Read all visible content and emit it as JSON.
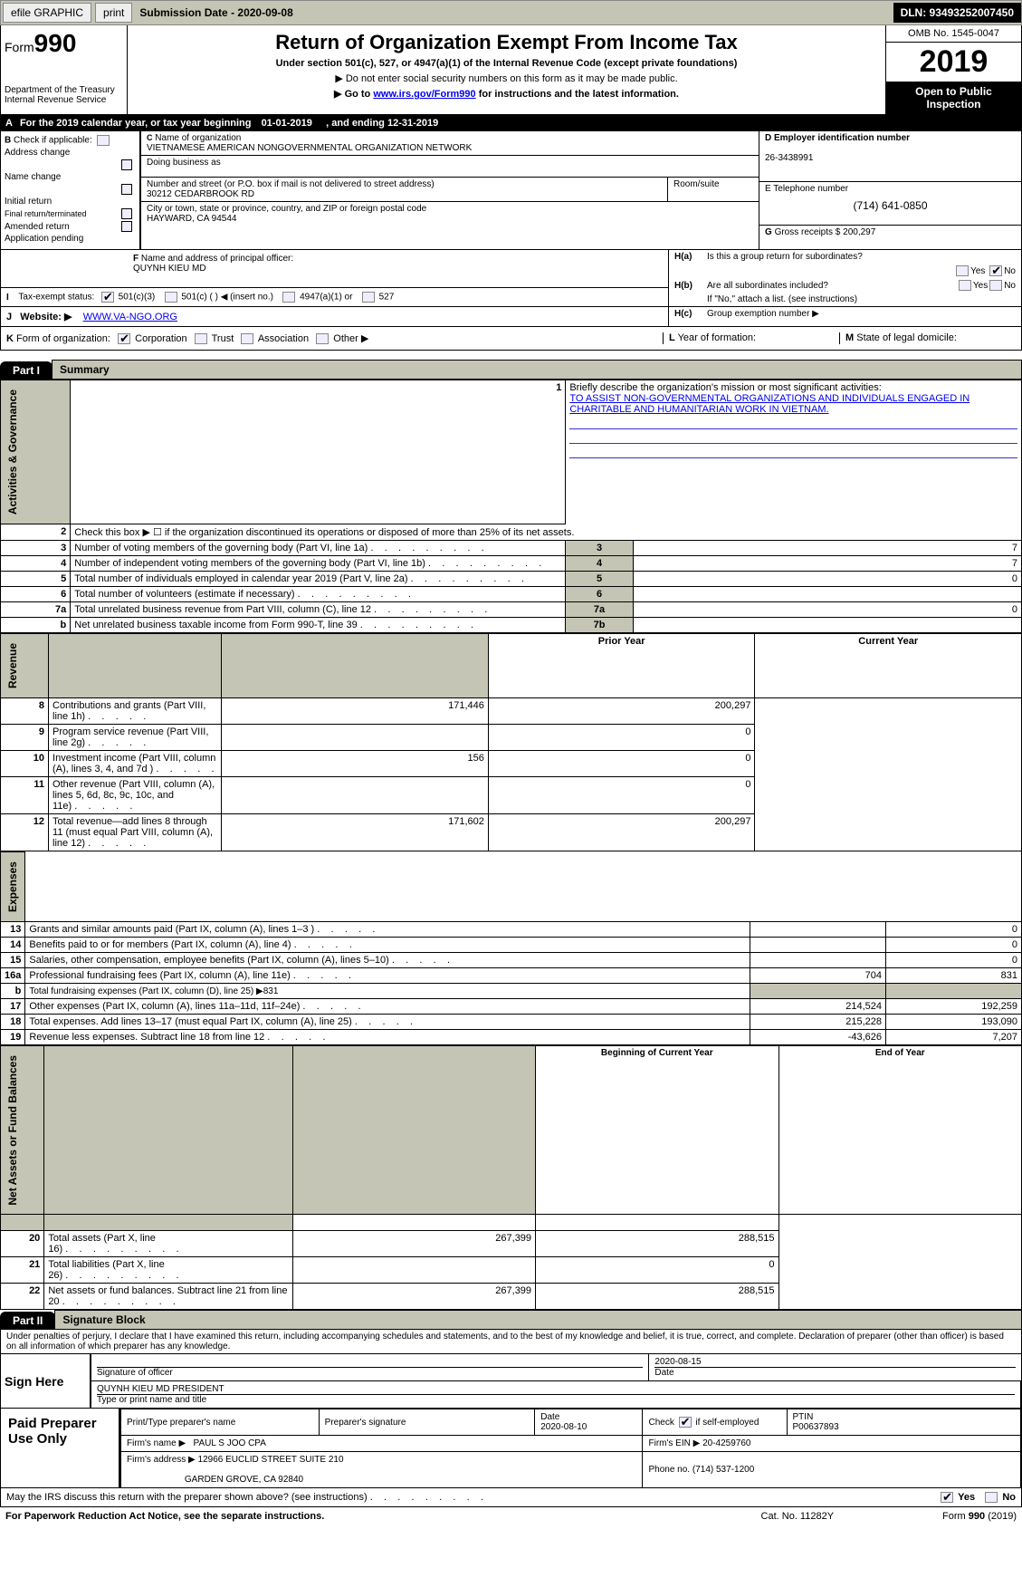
{
  "topbar": {
    "efile_label": "efile GRAPHIC",
    "print_label": "print",
    "submission_label": "Submission Date - 2020-09-08",
    "dln": "DLN: 93493252007450"
  },
  "header": {
    "form_prefix": "Form",
    "form_num": "990",
    "dept1": "Department of the Treasury",
    "dept2": "Internal Revenue Service",
    "title": "Return of Organization Exempt From Income Tax",
    "subtitle": "Under section 501(c), 527, or 4947(a)(1) of the Internal Revenue Code (except private foundations)",
    "note1": "▶ Do not enter social security numbers on this form as it may be made public.",
    "note2_pre": "▶ Go to ",
    "note2_link": "www.irs.gov/Form990",
    "note2_post": " for instructions and the latest information.",
    "omb": "OMB No. 1545-0047",
    "year": "2019",
    "open_pub": "Open to Public Inspection"
  },
  "row_a": {
    "label": "A",
    "text_pre": "For the 2019 calendar year, or tax year beginning ",
    "begin": "01-01-2019",
    "mid": ", and ending ",
    "end": "12-31-2019"
  },
  "section_b": {
    "b_label": "B",
    "b_text": "Check if applicable:",
    "checks": [
      "Address change",
      "Name change",
      "Initial return",
      "Final return/terminated",
      "Amended return",
      "Application pending"
    ],
    "c_label": "C",
    "c_text": "Name of organization",
    "org_name": "VIETNAMESE AMERICAN NONGOVERNMENTAL ORGANIZATION NETWORK",
    "dba_label": "Doing business as",
    "street_label": "Number and street (or P.O. box if mail is not delivered to street address)",
    "street": "30212 CEDARBROOK RD",
    "room_label": "Room/suite",
    "city_label": "City or town, state or province, country, and ZIP or foreign postal code",
    "city": "HAYWARD, CA  94544",
    "d_label": "D Employer identification number",
    "d_val": "26-3438991",
    "e_label": "E Telephone number",
    "e_val": "(714) 641-0850",
    "g_label": "G",
    "g_text": "Gross receipts $",
    "g_val": "200,297"
  },
  "row_f": {
    "f_label": "F",
    "f_text": "Name and address of principal officer:",
    "f_val": "QUYNH KIEU MD",
    "h_a_label": "H(a)",
    "h_a_text": "Is this a group return for subordinates?",
    "h_b_label": "H(b)",
    "h_b_text": "Are all subordinates included?",
    "h_b_note": "If \"No,\" attach a list. (see instructions)",
    "h_c_label": "H(c)",
    "h_c_text": "Group exemption number ▶",
    "yes": "Yes",
    "no": "No"
  },
  "row_i": {
    "i_label": "I",
    "i_text": "Tax-exempt status:",
    "opts": [
      "501(c)(3)",
      "501(c) (  ) ◀ (insert no.)",
      "4947(a)(1) or",
      "527"
    ]
  },
  "row_j": {
    "j_label": "J",
    "j_text": "Website: ▶",
    "j_val": "WWW.VA-NGO.ORG"
  },
  "row_k": {
    "k_label": "K",
    "k_text": "Form of organization:",
    "opts": [
      "Corporation",
      "Trust",
      "Association",
      "Other ▶"
    ],
    "l_label": "L",
    "l_text": "Year of formation:",
    "m_label": "M",
    "m_text": "State of legal domicile:"
  },
  "part1": {
    "hdr": "Part I",
    "title": "Summary",
    "line1_num": "1",
    "line1": "Briefly describe the organization's mission or most significant activities:",
    "line1_val": "TO ASSIST NON-GOVERNMENTAL ORGANIZATIONS AND INDIVIDUALS ENGAGED IN CHARITABLE AND HUMANITARIAN WORK IN VIETNAM.",
    "line2_num": "2",
    "line2": "Check this box ▶ ☐ if the organization discontinued its operations or disposed of more than 25% of its net assets.",
    "rows_ag": [
      {
        "n": "3",
        "d": "Number of voting members of the governing body (Part VI, line 1a)",
        "box": "3",
        "v": "7"
      },
      {
        "n": "4",
        "d": "Number of independent voting members of the governing body (Part VI, line 1b)",
        "box": "4",
        "v": "7"
      },
      {
        "n": "5",
        "d": "Total number of individuals employed in calendar year 2019 (Part V, line 2a)",
        "box": "5",
        "v": "0"
      },
      {
        "n": "6",
        "d": "Total number of volunteers (estimate if necessary)",
        "box": "6",
        "v": ""
      },
      {
        "n": "7a",
        "d": "Total unrelated business revenue from Part VIII, column (C), line 12",
        "box": "7a",
        "v": "0"
      },
      {
        "n": "b",
        "d": "Net unrelated business taxable income from Form 990-T, line 39",
        "box": "7b",
        "v": ""
      }
    ],
    "col_hdrs": {
      "prior": "Prior Year",
      "current": "Current Year"
    },
    "rows_rev": [
      {
        "n": "8",
        "d": "Contributions and grants (Part VIII, line 1h)",
        "p": "171,446",
        "c": "200,297"
      },
      {
        "n": "9",
        "d": "Program service revenue (Part VIII, line 2g)",
        "p": "",
        "c": "0"
      },
      {
        "n": "10",
        "d": "Investment income (Part VIII, column (A), lines 3, 4, and 7d )",
        "p": "156",
        "c": "0"
      },
      {
        "n": "11",
        "d": "Other revenue (Part VIII, column (A), lines 5, 6d, 8c, 9c, 10c, and 11e)",
        "p": "",
        "c": "0"
      },
      {
        "n": "12",
        "d": "Total revenue—add lines 8 through 11 (must equal Part VIII, column (A), line 12)",
        "p": "171,602",
        "c": "200,297"
      }
    ],
    "rows_exp": [
      {
        "n": "13",
        "d": "Grants and similar amounts paid (Part IX, column (A), lines 1–3 )",
        "p": "",
        "c": "0"
      },
      {
        "n": "14",
        "d": "Benefits paid to or for members (Part IX, column (A), line 4)",
        "p": "",
        "c": "0"
      },
      {
        "n": "15",
        "d": "Salaries, other compensation, employee benefits (Part IX, column (A), lines 5–10)",
        "p": "",
        "c": "0"
      },
      {
        "n": "16a",
        "d": "Professional fundraising fees (Part IX, column (A), line 11e)",
        "p": "704",
        "c": "831"
      },
      {
        "n": "b",
        "d": "Total fundraising expenses (Part IX, column (D), line 25) ▶831",
        "p": "shade",
        "c": "shade"
      },
      {
        "n": "17",
        "d": "Other expenses (Part IX, column (A), lines 11a–11d, 11f–24e)",
        "p": "214,524",
        "c": "192,259"
      },
      {
        "n": "18",
        "d": "Total expenses. Add lines 13–17 (must equal Part IX, column (A), line 25)",
        "p": "215,228",
        "c": "193,090"
      },
      {
        "n": "19",
        "d": "Revenue less expenses. Subtract line 18 from line 12",
        "p": "-43,626",
        "c": "7,207"
      }
    ],
    "col_hdrs2": {
      "prior": "Beginning of Current Year",
      "current": "End of Year"
    },
    "rows_net": [
      {
        "n": "20",
        "d": "Total assets (Part X, line 16)",
        "p": "267,399",
        "c": "288,515"
      },
      {
        "n": "21",
        "d": "Total liabilities (Part X, line 26)",
        "p": "",
        "c": "0"
      },
      {
        "n": "22",
        "d": "Net assets or fund balances. Subtract line 21 from line 20",
        "p": "267,399",
        "c": "288,515"
      }
    ],
    "vert_labels": {
      "ag": "Activities & Governance",
      "rev": "Revenue",
      "exp": "Expenses",
      "net": "Net Assets or Fund Balances"
    }
  },
  "part2": {
    "hdr": "Part II",
    "title": "Signature Block",
    "perjury": "Under penalties of perjury, I declare that I have examined this return, including accompanying schedules and statements, and to the best of my knowledge and belief, it is true, correct, and complete. Declaration of preparer (other than officer) is based on all information of which preparer has any knowledge.",
    "sign_here": "Sign Here",
    "sig_officer": "Signature of officer",
    "sig_date": "2020-08-15",
    "date_label": "Date",
    "officer_name": "QUYNH KIEU MD  PRESIDENT",
    "name_title_label": "Type or print name and title",
    "paid_label": "Paid Preparer Use Only",
    "prep_name_label": "Print/Type preparer's name",
    "prep_sig_label": "Preparer's signature",
    "prep_date_label": "Date",
    "prep_date": "2020-08-10",
    "check_if": "Check ☑ if self-employed",
    "ptin_label": "PTIN",
    "ptin": "P00637893",
    "firm_name_label": "Firm's name    ▶",
    "firm_name": "PAUL S JOO CPA",
    "firm_ein_label": "Firm's EIN ▶",
    "firm_ein": "20-4259760",
    "firm_addr_label": "Firm's address ▶",
    "firm_addr1": "12966 EUCLID STREET SUITE 210",
    "firm_addr2": "GARDEN GROVE, CA  92840",
    "phone_label": "Phone no.",
    "phone": "(714) 537-1200",
    "may_irs": "May the IRS discuss this return with the preparer shown above? (see instructions)",
    "footer_left": "For Paperwork Reduction Act Notice, see the separate instructions.",
    "footer_mid": "Cat. No. 11282Y",
    "footer_right": "Form 990 (2019)"
  }
}
